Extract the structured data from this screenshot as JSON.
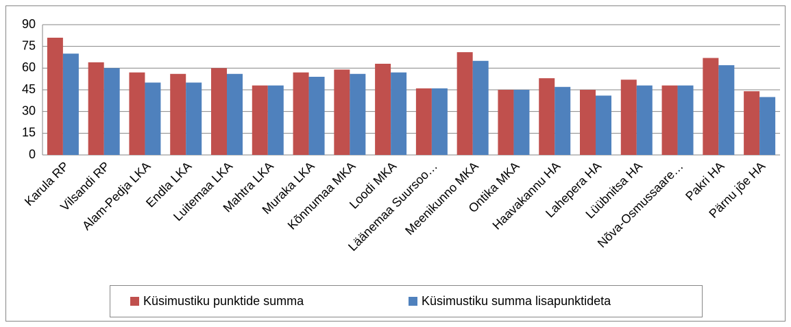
{
  "chart_data": {
    "type": "bar",
    "categories": [
      "Karula RP",
      "Vilsandi RP",
      "Alam-Pedja LKA",
      "Endla LKA",
      "Luitemaa LKA",
      "Mahtra LKA",
      "Muraka LKA",
      "Kõnnumaa MKA",
      "Loodi MKA",
      "Läänemaa Suursoo…",
      "Meenikunno MKA",
      "Ontika MKA",
      "Haavakannu HA",
      "Lahepera HA",
      "Lüübnitsa HA",
      "Nõva-Osmussaare…",
      "Pakri HA",
      "Pärnu jõe HA"
    ],
    "series": [
      {
        "name": "Küsimustiku punktide summa",
        "color": "#c0504d",
        "values": [
          81,
          64,
          57,
          56,
          60,
          48,
          57,
          59,
          63,
          46,
          71,
          45,
          53,
          45,
          52,
          48,
          67,
          44
        ]
      },
      {
        "name": "Küsimustiku summa lisapunktideta",
        "color": "#4f81bd",
        "values": [
          70,
          60,
          50,
          50,
          56,
          48,
          54,
          56,
          57,
          46,
          65,
          45,
          47,
          41,
          48,
          48,
          62,
          40
        ]
      }
    ],
    "ylim": [
      0,
      90
    ],
    "yticks": [
      0,
      15,
      30,
      45,
      60,
      75,
      90
    ],
    "grid": true,
    "legend": "bottom"
  }
}
